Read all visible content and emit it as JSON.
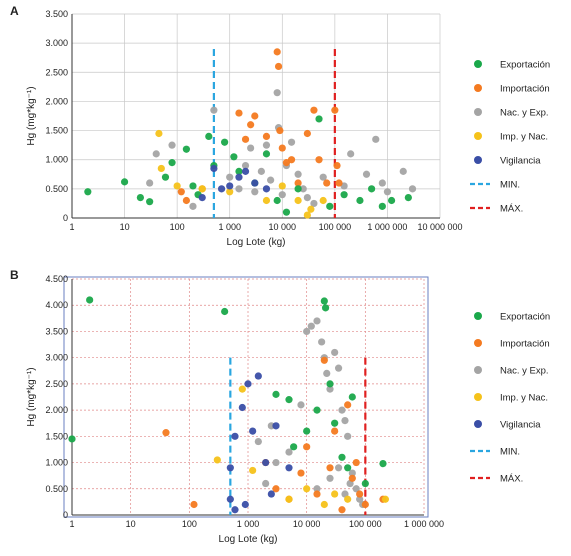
{
  "chart_data": [
    {
      "panel": "A",
      "type": "scatter",
      "xscale": "log",
      "xlabel": "Log Lote (kg)",
      "ylabel": "Hg (mg*kg⁻¹)",
      "xticks": [
        "1",
        "10",
        "100",
        "1 000",
        "10 000",
        "100 000",
        "1 000 000",
        "10 000 000"
      ],
      "yticks": [
        "0",
        "0.500",
        "1.000",
        "1.500",
        "2.000",
        "2.500",
        "3.000",
        "3.500"
      ],
      "xlim": [
        1,
        10000000
      ],
      "ylim": [
        0,
        3.5
      ],
      "grid": true,
      "legend": "right",
      "thresholds": [
        {
          "name": "MIN.",
          "x": 500,
          "ymax": 2.9,
          "color": "#2aa6e0"
        },
        {
          "name": "MÁX.",
          "x": 100000,
          "ymax": 2.9,
          "color": "#e02020"
        }
      ],
      "series": [
        {
          "name": "Exportación",
          "color": "#1aa84a",
          "points": [
            [
              2,
              0.45
            ],
            [
              10,
              0.62
            ],
            [
              20,
              0.35
            ],
            [
              30,
              0.28
            ],
            [
              60,
              0.7
            ],
            [
              80,
              0.95
            ],
            [
              150,
              1.18
            ],
            [
              200,
              0.55
            ],
            [
              250,
              0.4
            ],
            [
              400,
              1.4
            ],
            [
              500,
              0.9
            ],
            [
              800,
              1.3
            ],
            [
              1200,
              1.05
            ],
            [
              1500,
              0.8
            ],
            [
              3000,
              0.6
            ],
            [
              5000,
              1.1
            ],
            [
              8000,
              0.3
            ],
            [
              12000,
              0.1
            ],
            [
              20000,
              0.5
            ],
            [
              50000,
              1.7
            ],
            [
              80000,
              0.2
            ],
            [
              150000,
              0.4
            ],
            [
              300000,
              0.3
            ],
            [
              500000,
              0.5
            ],
            [
              800000,
              0.2
            ],
            [
              1200000,
              0.3
            ],
            [
              2500000,
              0.35
            ]
          ]
        },
        {
          "name": "Importación",
          "color": "#f47a20",
          "points": [
            [
              120,
              0.45
            ],
            [
              150,
              0.3
            ],
            [
              300,
              0.5
            ],
            [
              1500,
              1.8
            ],
            [
              2000,
              1.35
            ],
            [
              2500,
              1.6
            ],
            [
              3000,
              1.75
            ],
            [
              5000,
              1.4
            ],
            [
              8000,
              2.85
            ],
            [
              8500,
              2.6
            ],
            [
              9000,
              1.5
            ],
            [
              10000,
              1.2
            ],
            [
              12000,
              0.95
            ],
            [
              15000,
              1.0
            ],
            [
              20000,
              0.6
            ],
            [
              30000,
              1.45
            ],
            [
              40000,
              1.85
            ],
            [
              50000,
              1.0
            ],
            [
              70000,
              0.6
            ],
            [
              100000,
              1.85
            ],
            [
              110000,
              0.9
            ],
            [
              120000,
              0.6
            ]
          ]
        },
        {
          "name": "Nac. y Exp.",
          "color": "#a4a4a4",
          "points": [
            [
              30,
              0.6
            ],
            [
              40,
              1.1
            ],
            [
              80,
              1.25
            ],
            [
              200,
              0.2
            ],
            [
              500,
              1.85
            ],
            [
              1000,
              0.7
            ],
            [
              1500,
              0.5
            ],
            [
              2000,
              0.9
            ],
            [
              2500,
              1.2
            ],
            [
              3000,
              0.45
            ],
            [
              4000,
              0.8
            ],
            [
              5000,
              1.25
            ],
            [
              6000,
              0.65
            ],
            [
              8000,
              2.15
            ],
            [
              8500,
              1.55
            ],
            [
              10000,
              0.4
            ],
            [
              12000,
              0.9
            ],
            [
              15000,
              1.3
            ],
            [
              20000,
              0.75
            ],
            [
              25000,
              0.5
            ],
            [
              30000,
              0.35
            ],
            [
              40000,
              0.25
            ],
            [
              60000,
              0.7
            ],
            [
              150000,
              0.55
            ],
            [
              200000,
              1.1
            ],
            [
              400000,
              0.75
            ],
            [
              600000,
              1.35
            ],
            [
              800000,
              0.6
            ],
            [
              1000000,
              0.45
            ],
            [
              2000000,
              0.8
            ],
            [
              3000000,
              0.5
            ]
          ]
        },
        {
          "name": "Imp. y Nac.",
          "color": "#f5c21a",
          "points": [
            [
              45,
              1.45
            ],
            [
              50,
              0.85
            ],
            [
              100,
              0.55
            ],
            [
              300,
              0.5
            ],
            [
              1000,
              0.45
            ],
            [
              5000,
              0.3
            ],
            [
              10000,
              0.55
            ],
            [
              20000,
              0.3
            ],
            [
              30000,
              0.05
            ],
            [
              35000,
              0.15
            ],
            [
              60000,
              0.3
            ]
          ]
        },
        {
          "name": "Vigilancia",
          "color": "#3a4ea6",
          "points": [
            [
              300,
              0.35
            ],
            [
              500,
              0.85
            ],
            [
              700,
              0.5
            ],
            [
              1000,
              0.55
            ],
            [
              1500,
              0.7
            ],
            [
              2000,
              0.8
            ],
            [
              3000,
              0.6
            ],
            [
              5000,
              0.5
            ]
          ]
        }
      ]
    },
    {
      "panel": "B",
      "type": "scatter",
      "xscale": "log",
      "xlabel": "Log Lote (kg)",
      "ylabel": "Hg (mg*kg⁻¹)",
      "xticks": [
        "1",
        "10",
        "100",
        "1 000",
        "10 000",
        "100 000",
        "1 000 000"
      ],
      "yticks": [
        "0",
        "0.500",
        "1.000",
        "1.500",
        "2.000",
        "2.500",
        "3.000",
        "3.500",
        "4.000",
        "4.500"
      ],
      "xlim": [
        1,
        1000000
      ],
      "ylim": [
        0,
        4.5
      ],
      "grid": true,
      "legend": "right",
      "thresholds": [
        {
          "name": "MIN.",
          "x": 500,
          "ymax": 3.0,
          "color": "#2aa6e0"
        },
        {
          "name": "MÁX.",
          "x": 100000,
          "ymax": 3.0,
          "color": "#e02020"
        }
      ],
      "series": [
        {
          "name": "Exportación",
          "color": "#1aa84a",
          "points": [
            [
              1,
              1.45
            ],
            [
              2,
              4.1
            ],
            [
              400,
              3.88
            ],
            [
              3000,
              2.3
            ],
            [
              5000,
              2.2
            ],
            [
              6000,
              1.3
            ],
            [
              10000,
              1.6
            ],
            [
              15000,
              2.0
            ],
            [
              20000,
              4.08
            ],
            [
              21000,
              3.95
            ],
            [
              25000,
              2.5
            ],
            [
              30000,
              1.75
            ],
            [
              40000,
              1.1
            ],
            [
              50000,
              0.9
            ],
            [
              60000,
              2.25
            ],
            [
              100000,
              0.6
            ],
            [
              200000,
              0.98
            ]
          ]
        },
        {
          "name": "Importación",
          "color": "#f47a20",
          "points": [
            [
              40,
              1.57
            ],
            [
              120,
              0.2
            ],
            [
              2000,
              1.0
            ],
            [
              3000,
              0.5
            ],
            [
              5000,
              0.3
            ],
            [
              8000,
              0.8
            ],
            [
              10000,
              1.3
            ],
            [
              15000,
              0.4
            ],
            [
              20000,
              2.95
            ],
            [
              25000,
              0.9
            ],
            [
              30000,
              1.6
            ],
            [
              40000,
              0.1
            ],
            [
              50000,
              2.1
            ],
            [
              60000,
              0.7
            ],
            [
              70000,
              1.0
            ],
            [
              80000,
              0.4
            ],
            [
              100000,
              0.2
            ],
            [
              200000,
              0.3
            ]
          ]
        },
        {
          "name": "Nac. y Exp.",
          "color": "#a4a4a4",
          "points": [
            [
              1500,
              1.4
            ],
            [
              2000,
              0.6
            ],
            [
              2500,
              1.7
            ],
            [
              3000,
              1.0
            ],
            [
              5000,
              1.2
            ],
            [
              8000,
              2.1
            ],
            [
              10000,
              3.5
            ],
            [
              12000,
              3.6
            ],
            [
              15000,
              3.7
            ],
            [
              18000,
              3.3
            ],
            [
              20000,
              3.0
            ],
            [
              22000,
              2.7
            ],
            [
              25000,
              2.4
            ],
            [
              30000,
              3.1
            ],
            [
              35000,
              2.8
            ],
            [
              40000,
              2.0
            ],
            [
              45000,
              1.8
            ],
            [
              50000,
              1.5
            ],
            [
              60000,
              0.8
            ],
            [
              70000,
              0.5
            ],
            [
              80000,
              0.3
            ],
            [
              90000,
              0.2
            ],
            [
              15000,
              0.5
            ],
            [
              25000,
              0.7
            ],
            [
              35000,
              0.9
            ],
            [
              45000,
              0.4
            ],
            [
              55000,
              0.6
            ]
          ]
        },
        {
          "name": "Imp. y Nac.",
          "color": "#f5c21a",
          "points": [
            [
              300,
              1.05
            ],
            [
              800,
              2.4
            ],
            [
              1200,
              0.85
            ],
            [
              5000,
              0.3
            ],
            [
              10000,
              0.5
            ],
            [
              20000,
              0.2
            ],
            [
              30000,
              0.4
            ],
            [
              50000,
              0.3
            ],
            [
              220000,
              0.3
            ]
          ]
        },
        {
          "name": "Vigilancia",
          "color": "#3a4ea6",
          "points": [
            [
              500,
              0.3
            ],
            [
              500,
              0.9
            ],
            [
              600,
              1.5
            ],
            [
              800,
              2.05
            ],
            [
              1000,
              2.5
            ],
            [
              1200,
              1.6
            ],
            [
              1500,
              2.65
            ],
            [
              2000,
              1.0
            ],
            [
              2500,
              0.4
            ],
            [
              3000,
              1.7
            ],
            [
              5000,
              0.9
            ],
            [
              600,
              0.1
            ],
            [
              900,
              0.2
            ]
          ]
        }
      ]
    }
  ]
}
